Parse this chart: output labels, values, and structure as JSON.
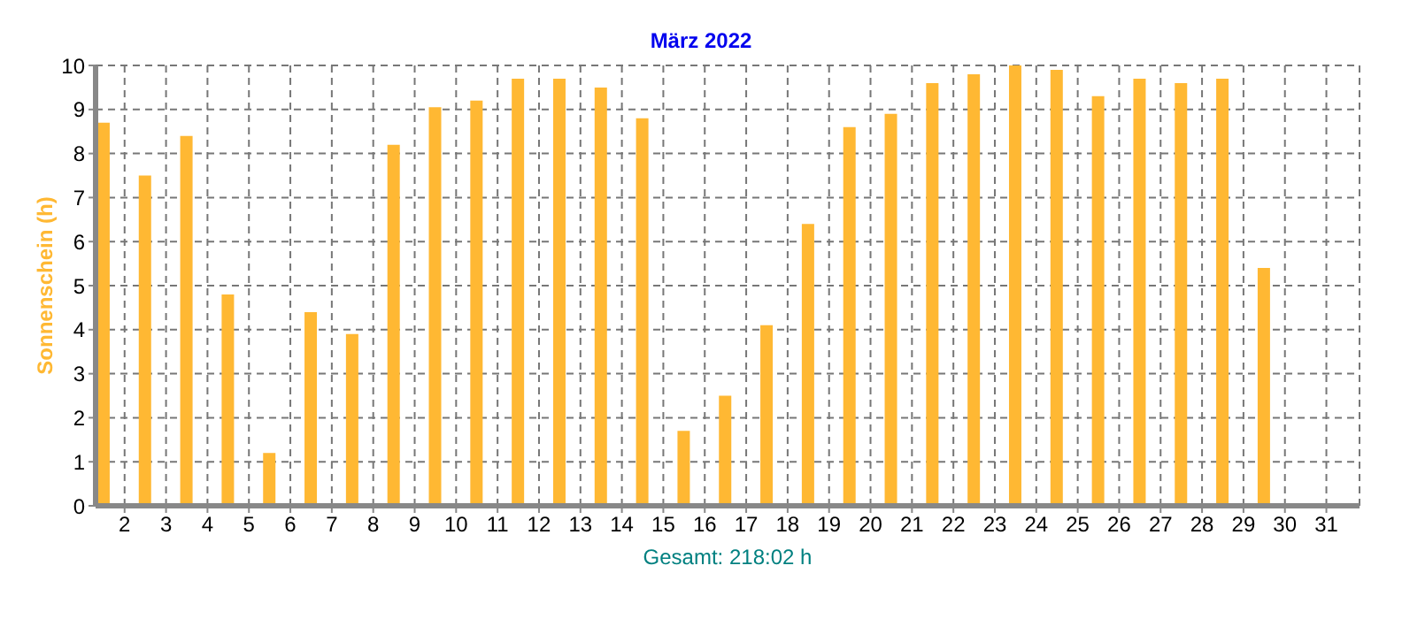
{
  "chart_data": {
    "type": "bar",
    "title": "März 2022",
    "ylabel": "Sonnenschein  (h)",
    "annotations": [
      "Gesamt: 218:02 h"
    ],
    "x": [
      1.5,
      2.5,
      3.5,
      4.5,
      5.5,
      6.5,
      7.5,
      8.5,
      9.5,
      10.5,
      11.5,
      12.5,
      13.5,
      14.5,
      15.5,
      16.5,
      17.5,
      18.5,
      19.5,
      20.5,
      21.5,
      22.5,
      23.5,
      24.5,
      25.5,
      26.5,
      27.5,
      28.5,
      29.5,
      30.5,
      31.5
    ],
    "values": [
      8.7,
      7.5,
      8.4,
      4.8,
      1.2,
      4.4,
      3.9,
      8.2,
      9.05,
      9.2,
      9.7,
      9.7,
      9.5,
      8.8,
      1.7,
      2.5,
      4.1,
      6.4,
      8.6,
      8.9,
      9.6,
      9.8,
      10,
      9.9,
      9.3,
      9.7,
      9.6,
      9.7,
      5.4,
      0,
      0
    ],
    "color": "#ffb833",
    "xlim": [
      1.3,
      31.8
    ],
    "xticks": [
      2,
      3,
      4,
      5,
      6,
      7,
      8,
      9,
      10,
      11,
      12,
      13,
      14,
      15,
      16,
      17,
      18,
      19,
      20,
      21,
      22,
      23,
      24,
      25,
      26,
      27,
      28,
      29,
      30,
      31
    ],
    "ylim": [
      0,
      10
    ],
    "yticks": [
      0,
      1,
      2,
      3,
      4,
      5,
      6,
      7,
      8,
      9,
      10
    ],
    "grid": true
  }
}
